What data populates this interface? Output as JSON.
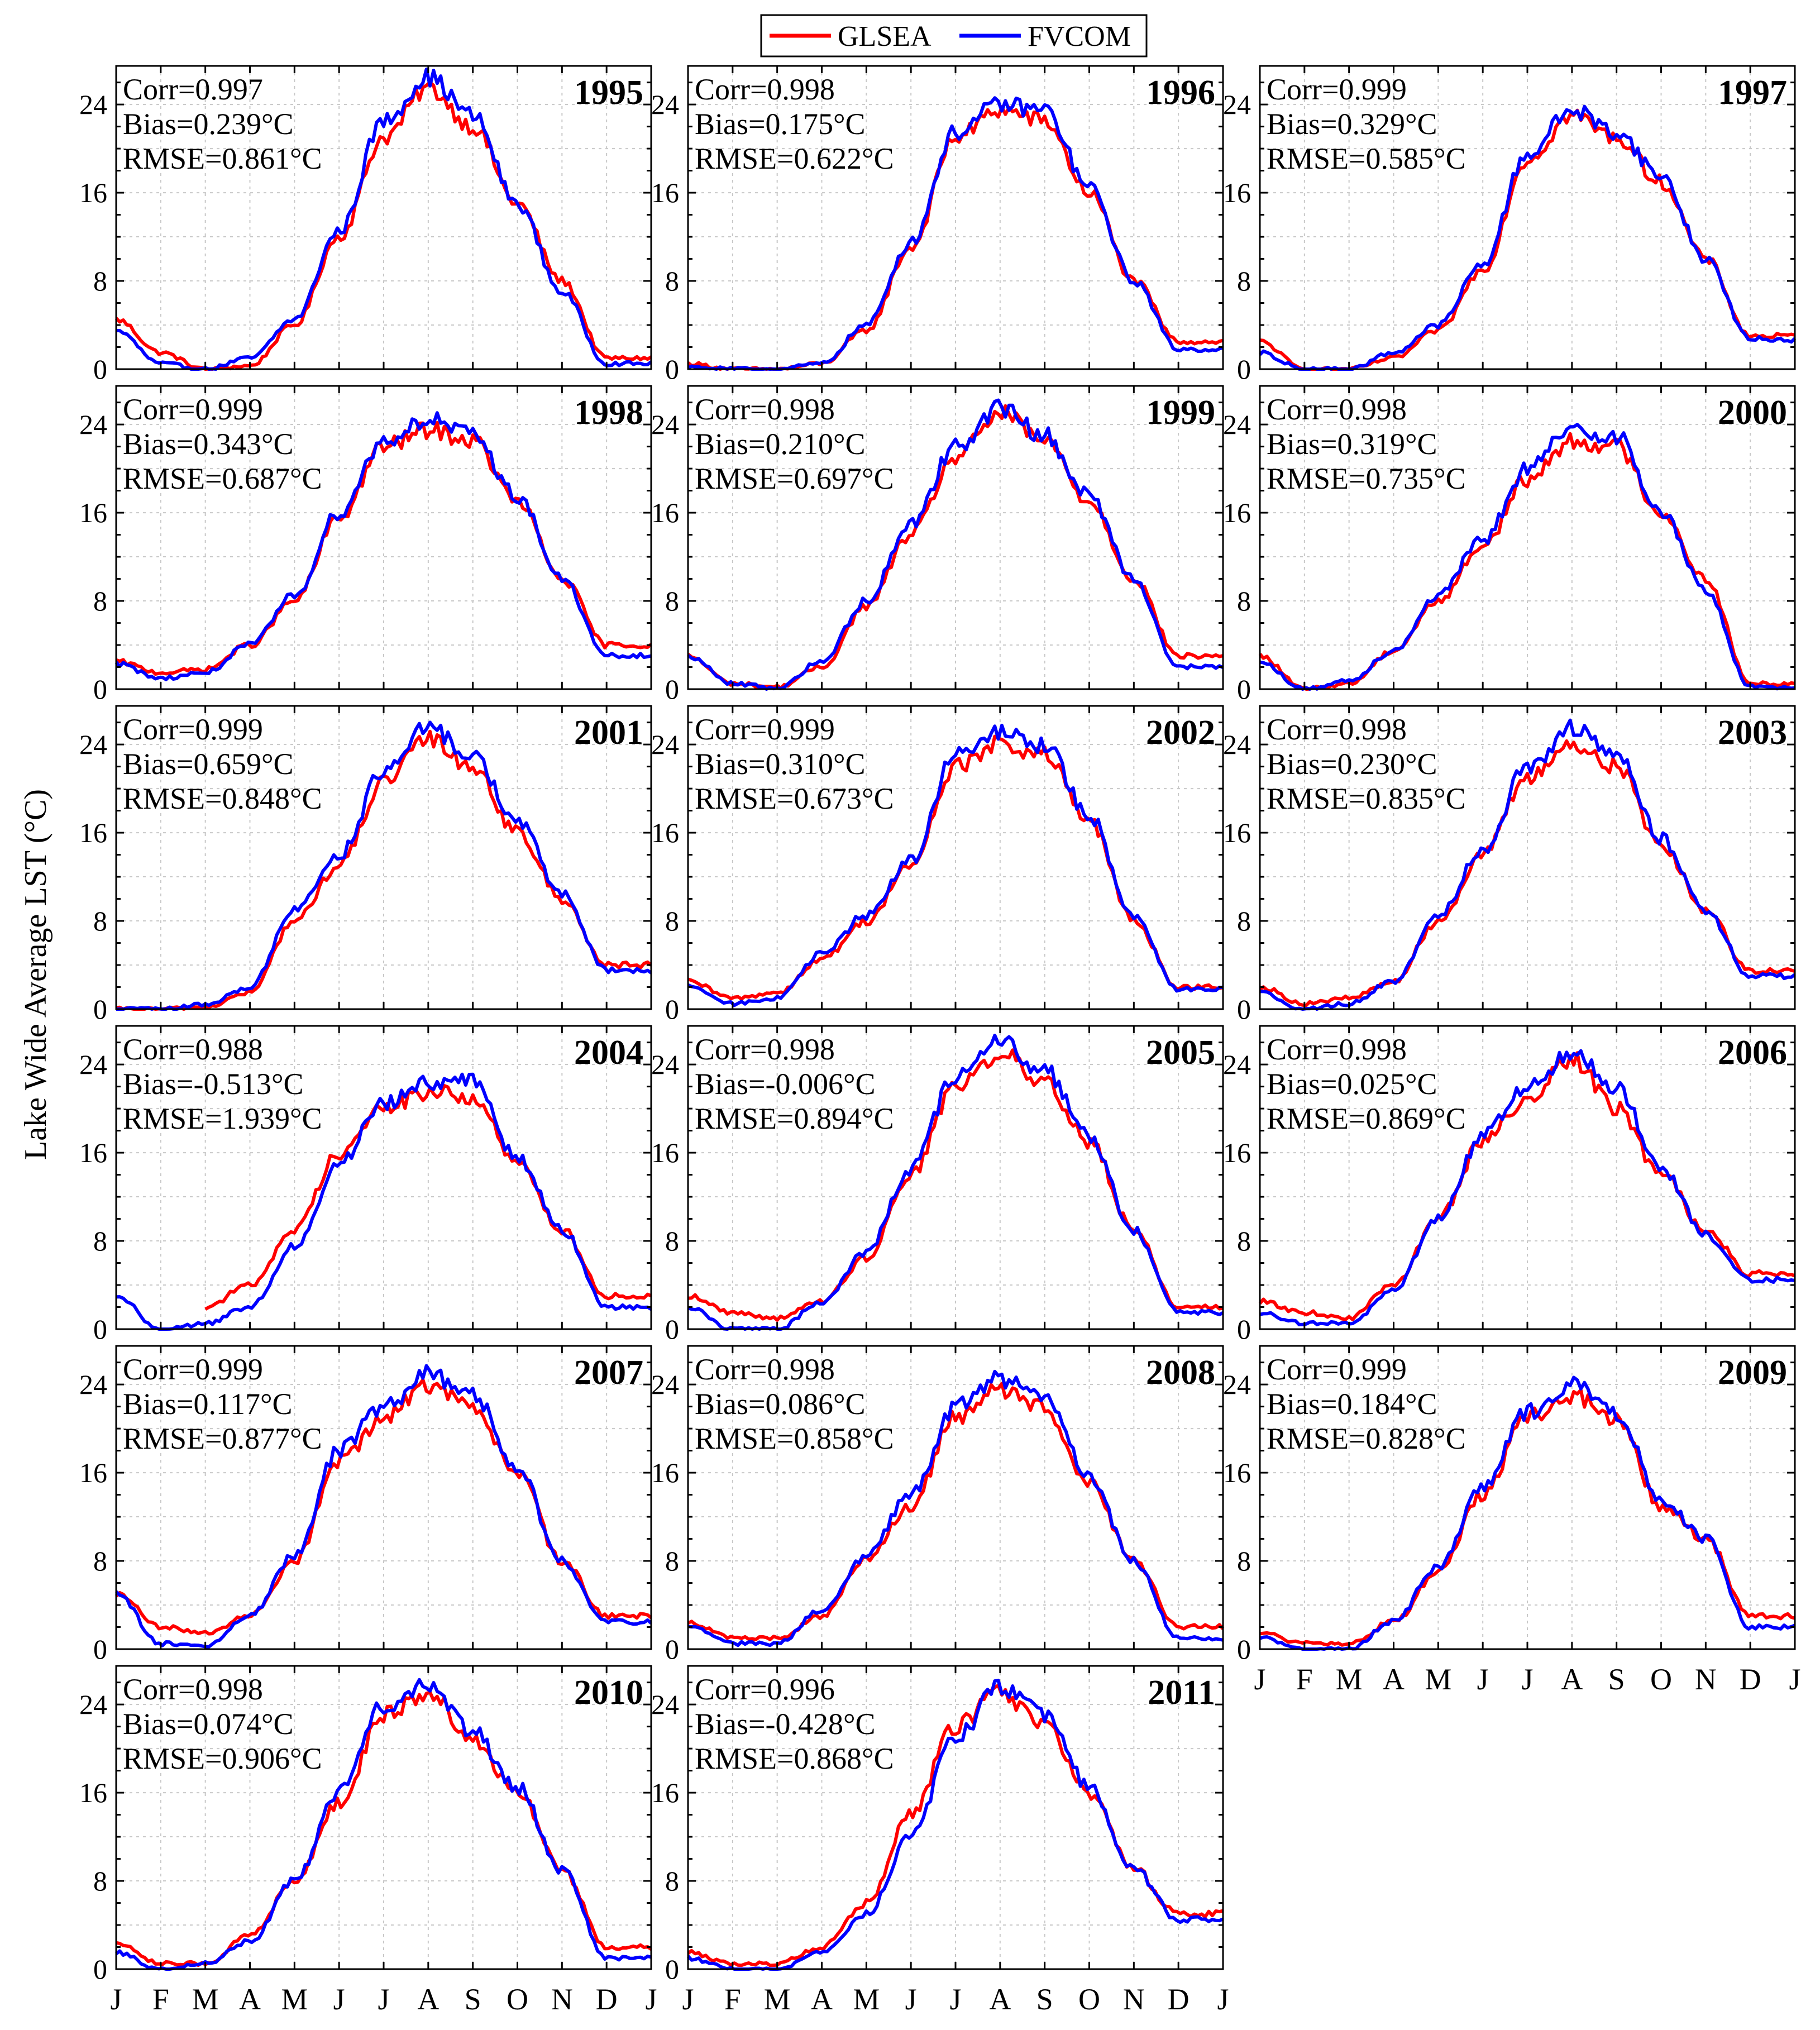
{
  "legend": {
    "items": [
      {
        "label": "GLSEA",
        "color": "#ff0000"
      },
      {
        "label": "FVCOM",
        "color": "#0000ff"
      }
    ]
  },
  "y_axis_label": "Lake Wide Average LST (°C)",
  "month_labels": [
    "J",
    "F",
    "M",
    "A",
    "M",
    "J",
    "J",
    "A",
    "S",
    "O",
    "N",
    "D",
    "J"
  ],
  "chart_data": {
    "type": "line",
    "xlabel": "",
    "ylabel": "Lake Wide Average LST (°C)",
    "ylim": [
      0,
      27.5
    ],
    "yticks": [
      0,
      8,
      16,
      24
    ],
    "xticks": [
      "J",
      "F",
      "M",
      "A",
      "M",
      "J",
      "J",
      "A",
      "S",
      "O",
      "N",
      "D",
      "J"
    ],
    "series_names": [
      "GLSEA",
      "FVCOM"
    ],
    "grid": true,
    "legend_position": "top-center",
    "panels": [
      {
        "year": "1995",
        "stats": [
          "Corr=0.997",
          "Bias=0.239°C",
          "RMSE=0.861°C"
        ],
        "glsea": [
          4.5,
          1.5,
          0,
          0.3,
          4,
          12,
          21,
          25.5,
          22,
          15,
          8,
          1
        ],
        "fvcom": [
          3.5,
          0.5,
          0,
          1,
          4.5,
          12.5,
          22.5,
          26.5,
          23,
          15,
          7,
          0.5
        ]
      },
      {
        "year": "1996",
        "stats": [
          "Corr=0.998",
          "Bias=0.175°C",
          "RMSE=0.622°C"
        ],
        "glsea": [
          0.5,
          0,
          0,
          0.5,
          3.5,
          11,
          21,
          23.5,
          22.5,
          16,
          8,
          2.5
        ],
        "fvcom": [
          0.2,
          0,
          0,
          0.5,
          4,
          11.5,
          21.5,
          24,
          23.5,
          16.5,
          8,
          1.8
        ]
      },
      {
        "year": "1997",
        "stats": [
          "Corr=0.999",
          "Bias=0.329°C",
          "RMSE=0.585°C"
        ],
        "glsea": [
          2.5,
          0,
          0,
          1,
          3.5,
          9,
          19,
          23,
          21,
          17,
          10,
          3
        ],
        "fvcom": [
          1.5,
          0,
          0,
          1.5,
          4,
          9.5,
          19.5,
          23.5,
          21.5,
          17.5,
          10,
          2.7
        ]
      },
      {
        "year": "1998",
        "stats": [
          "Corr=0.999",
          "Bias=0.343°C",
          "RMSE=0.687°C"
        ],
        "glsea": [
          2.5,
          1.5,
          1.8,
          4,
          8,
          15.5,
          22,
          23.5,
          22.5,
          17,
          10,
          4
        ],
        "fvcom": [
          2.3,
          1,
          1.5,
          4,
          8.5,
          16,
          22.5,
          24.5,
          23,
          17.5,
          10,
          3
        ]
      },
      {
        "year": "1999",
        "stats": [
          "Corr=0.998",
          "Bias=0.210°C",
          "RMSE=0.697°C"
        ],
        "glsea": [
          3,
          0.5,
          0.2,
          2,
          7.5,
          14,
          21,
          25,
          22.5,
          17,
          10,
          3
        ],
        "fvcom": [
          3,
          0.5,
          0.1,
          2.5,
          8,
          15,
          22,
          25.5,
          23,
          17.5,
          10,
          2
        ]
      },
      {
        "year": "2000",
        "stats": [
          "Corr=0.998",
          "Bias=0.319°C",
          "RMSE=0.735°C"
        ],
        "glsea": [
          3,
          0,
          0.5,
          3.5,
          8,
          13,
          19,
          22.5,
          22,
          16,
          10,
          0.5
        ],
        "fvcom": [
          2.5,
          0,
          0.8,
          3.5,
          8.5,
          13.5,
          20,
          23.5,
          23,
          16,
          9,
          0.2
        ]
      },
      {
        "year": "2001",
        "stats": [
          "Corr=0.999",
          "Bias=0.659°C",
          "RMSE=0.848°C"
        ],
        "glsea": [
          0,
          0,
          0.2,
          1.5,
          8,
          13,
          20.5,
          24.5,
          22,
          16,
          10,
          4
        ],
        "fvcom": [
          0,
          0,
          0.4,
          2,
          9,
          14,
          21.5,
          25.5,
          23,
          17,
          10.5,
          3.5
        ]
      },
      {
        "year": "2002",
        "stats": [
          "Corr=0.999",
          "Bias=0.310°C",
          "RMSE=0.673°C"
        ],
        "glsea": [
          2.5,
          1,
          1.5,
          4.5,
          8,
          13,
          22,
          24,
          23,
          17,
          8,
          2
        ],
        "fvcom": [
          2,
          0.5,
          1,
          5,
          8.5,
          13.5,
          23,
          25,
          24,
          17.5,
          8.5,
          1.8
        ]
      },
      {
        "year": "2003",
        "stats": [
          "Corr=0.998",
          "Bias=0.230°C",
          "RMSE=0.835°C"
        ],
        "glsea": [
          2,
          0.5,
          1,
          2.5,
          8,
          14,
          21,
          24,
          22,
          15,
          9,
          3.5
        ],
        "fvcom": [
          1.5,
          0,
          0.5,
          2.5,
          8.5,
          14.5,
          22,
          25.5,
          23,
          15.5,
          9,
          3
        ]
      },
      {
        "year": "2004",
        "stats": [
          "Corr=0.988",
          "Bias=-0.513°C",
          "RMSE=1.939°C"
        ],
        "glsea": [
          null,
          null,
          2,
          4,
          9,
          16,
          20,
          21.5,
          21,
          15,
          9,
          3
        ],
        "fvcom": [
          3,
          0,
          0.5,
          2,
          7.5,
          15,
          20.5,
          22.5,
          22.5,
          15.5,
          9,
          2
        ]
      },
      {
        "year": "2005",
        "stats": [
          "Corr=0.998",
          "Bias=-0.006°C",
          "RMSE=0.894°C"
        ],
        "glsea": [
          3,
          1.5,
          1,
          2.5,
          6.5,
          14,
          22,
          25,
          22.5,
          17,
          9,
          2
        ],
        "fvcom": [
          2,
          0,
          0,
          2.5,
          7,
          14.5,
          23,
          26,
          23.5,
          17.5,
          9,
          1.5
        ]
      },
      {
        "year": "2006",
        "stats": [
          "Corr=0.998",
          "Bias=0.025°C",
          "RMSE=0.869°C"
        ],
        "glsea": [
          2.5,
          1.5,
          1,
          4,
          10,
          17,
          21,
          24.5,
          20,
          14,
          9,
          5
        ],
        "fvcom": [
          1.5,
          0.5,
          0.5,
          3.5,
          10,
          17.5,
          22,
          25,
          22,
          14.5,
          8.5,
          4.5
        ]
      },
      {
        "year": "2007",
        "stats": [
          "Corr=0.999",
          "Bias=0.117°C",
          "RMSE=0.877°C"
        ],
        "glsea": [
          5,
          2,
          1.5,
          3,
          8,
          17,
          21,
          24,
          22,
          16,
          8,
          3
        ],
        "fvcom": [
          5,
          0.5,
          0.2,
          3,
          8.5,
          18,
          22,
          25,
          23,
          16.5,
          8,
          2.5
        ]
      },
      {
        "year": "2008",
        "stats": [
          "Corr=0.998",
          "Bias=0.086°C",
          "RMSE=0.858°C"
        ],
        "glsea": [
          2.5,
          1,
          1,
          3,
          8,
          13,
          21,
          23.5,
          22,
          15,
          8,
          2
        ],
        "fvcom": [
          2,
          0.5,
          0.5,
          3.5,
          8.5,
          14,
          22,
          24.5,
          23,
          15.5,
          8,
          1
        ]
      },
      {
        "year": "2009",
        "stats": [
          "Corr=0.999",
          "Bias=0.184°C",
          "RMSE=0.828°C"
        ],
        "glsea": [
          1.5,
          0.5,
          0.5,
          2.5,
          7,
          14,
          21,
          23,
          21,
          13,
          10,
          3
        ],
        "fvcom": [
          1,
          0,
          0,
          2.5,
          7.5,
          14.5,
          21.5,
          24,
          21.5,
          13.5,
          10,
          2
        ]
      },
      {
        "year": "2010",
        "stats": [
          "Corr=0.998",
          "Bias=0.074°C",
          "RMSE=0.906°C"
        ],
        "glsea": [
          2.5,
          0.5,
          0.5,
          3,
          8,
          15,
          23,
          25,
          21,
          16,
          9,
          2
        ],
        "fvcom": [
          1.5,
          0,
          0.5,
          2.5,
          8,
          16,
          24,
          26,
          21.5,
          16.5,
          9,
          1
        ]
      },
      {
        "year": "2011",
        "stats": [
          "Corr=0.996",
          "Bias=-0.428°C",
          "RMSE=0.868°C"
        ],
        "glsea": [
          1.5,
          0.5,
          0.5,
          2,
          6,
          14,
          22,
          25,
          22,
          16,
          9,
          5
        ],
        "fvcom": [
          1,
          0,
          0,
          1.5,
          5,
          12,
          21,
          25.5,
          23,
          16.5,
          9,
          4.5
        ]
      }
    ]
  }
}
